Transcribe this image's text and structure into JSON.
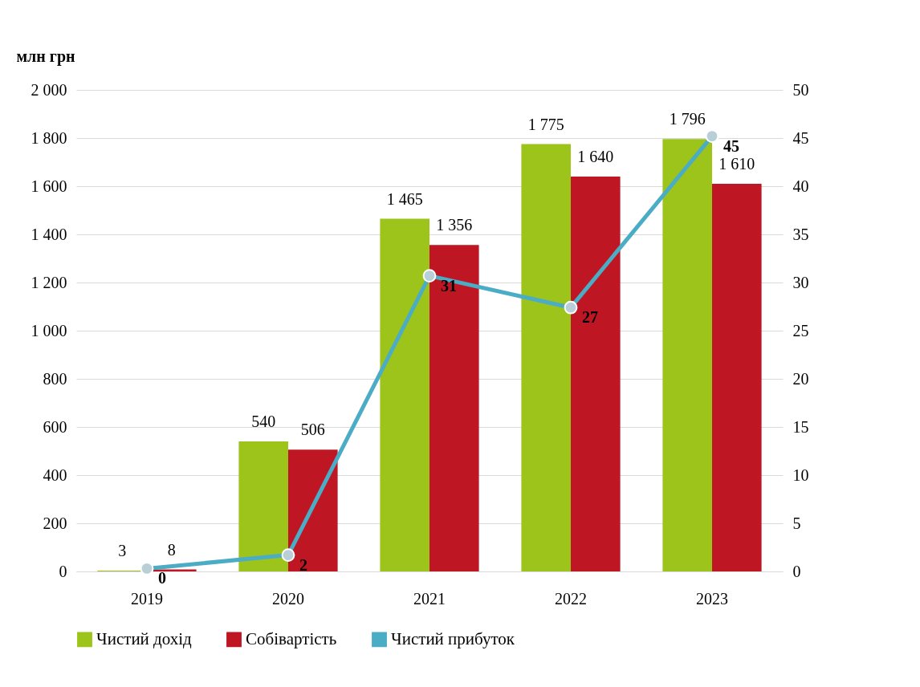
{
  "chart_data": {
    "type": "bar",
    "ylabel": "млн грн",
    "categories": [
      "2019",
      "2020",
      "2021",
      "2022",
      "2023"
    ],
    "series": [
      {
        "name": "Чистий дохід",
        "color": "#9dc41a",
        "values": [
          3,
          540,
          1465,
          1775,
          1796
        ],
        "value_labels": [
          "3",
          "540",
          "1 465",
          "1 775",
          "1 796"
        ]
      },
      {
        "name": "Собівартість",
        "color": "#be1622",
        "values": [
          8,
          506,
          1356,
          1640,
          1610
        ],
        "value_labels": [
          "8",
          "506",
          "1 356",
          "1 640",
          "1 610"
        ]
      },
      {
        "name": "Чистий прибуток",
        "type": "line",
        "axis": "y2",
        "color": "#4bacc6",
        "marker": "circle",
        "values": [
          0.3,
          1.7,
          30.7,
          27.4,
          45.2
        ],
        "value_labels": [
          "0",
          "2",
          "31",
          "27",
          "45"
        ]
      }
    ],
    "ylim": [
      0,
      2000
    ],
    "yticks": [
      0,
      200,
      400,
      600,
      800,
      {
        "value": 1000,
        "label": "1 000"
      },
      {
        "value": 1200,
        "label": "1 200"
      },
      {
        "value": 1400,
        "label": "1 400"
      },
      {
        "value": 1600,
        "label": "1 600"
      },
      {
        "value": 1800,
        "label": "1 800"
      },
      {
        "value": 2000,
        "label": "2 000"
      }
    ],
    "y2lim": [
      0,
      50
    ],
    "y2ticks": [
      0,
      5,
      10,
      15,
      20,
      25,
      30,
      35,
      40,
      45,
      50
    ],
    "grid": "y",
    "legend": "bottom"
  }
}
